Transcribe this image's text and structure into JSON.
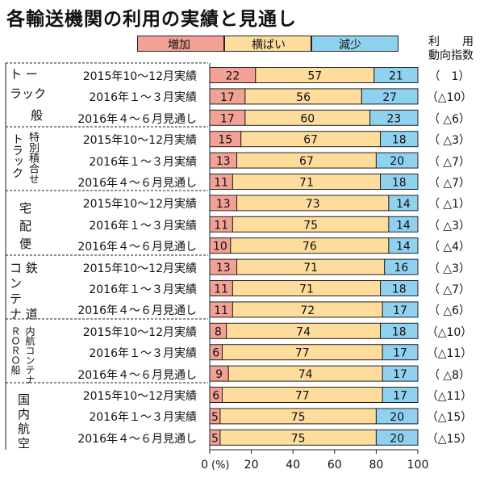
{
  "title": "各輸送機関の利用の実績と見通し",
  "legend": [
    {
      "label": "増加",
      "color": "#f4a195"
    },
    {
      "label": "横ばい",
      "color": "#fddc9c"
    },
    {
      "label": "減少",
      "color": "#8fd2f0"
    }
  ],
  "corner_label_1": "利　　用",
  "corner_label_2": "動向指数",
  "groups": [
    {
      "label_lines": [
        "ト ー",
        "ラック",
        "般"
      ],
      "rows": [
        0,
        1,
        2
      ]
    },
    {
      "label_lines": [
        "特別積合せ",
        "トラック"
      ],
      "rows": [
        3,
        4,
        5
      ]
    },
    {
      "label_lines": [
        "宅",
        "配",
        "便"
      ],
      "rows": [
        6,
        7,
        8
      ]
    },
    {
      "label_lines": [
        "コ 鉄",
        "ン",
        "テ",
        "ナ 道"
      ],
      "rows": [
        9,
        10,
        11
      ]
    },
    {
      "label_lines": [
        "ＲＯＲＯ船",
        "内航コンテナ"
      ],
      "rows": [
        12,
        13,
        14
      ]
    },
    {
      "label_lines": [
        "国",
        "内",
        "航",
        "空"
      ],
      "rows": [
        15,
        16,
        17
      ]
    }
  ],
  "chart_data": {
    "type": "bar",
    "orientation": "horizontal-stacked-100",
    "title": "各輸送機関の利用の実績と見通し",
    "xlabel": "(%)",
    "xlim": [
      0,
      100
    ],
    "x_ticks": [
      "0",
      "20",
      "40",
      "60",
      "80",
      "100"
    ],
    "x_unit_label": "(%)",
    "series_names": [
      "増加",
      "横ばい",
      "減少"
    ],
    "colors": [
      "#f4a195",
      "#fddc9c",
      "#8fd2f0"
    ],
    "rows": [
      {
        "label": "2015年10～12月実績",
        "values": [
          22,
          57,
          21
        ],
        "index": "（　1）"
      },
      {
        "label": "2016年１～３月実績",
        "values": [
          17,
          56,
          27
        ],
        "index": "（△10）"
      },
      {
        "label": "2016年４～６月見通し",
        "values": [
          17,
          60,
          23
        ],
        "index": "（ △6）"
      },
      {
        "label": "2015年10～12月実績",
        "values": [
          15,
          67,
          18
        ],
        "index": "（ △3）"
      },
      {
        "label": "2016年１～３月実績",
        "values": [
          13,
          67,
          20
        ],
        "index": "（ △7）"
      },
      {
        "label": "2016年４～６月見通し",
        "values": [
          11,
          71,
          18
        ],
        "index": "（ △7）"
      },
      {
        "label": "2015年10～12月実績",
        "values": [
          13,
          73,
          14
        ],
        "index": "（ △1）"
      },
      {
        "label": "2016年１～３月実績",
        "values": [
          11,
          75,
          14
        ],
        "index": "（ △3）"
      },
      {
        "label": "2016年４～６月見通し",
        "values": [
          10,
          76,
          14
        ],
        "index": "（ △4）"
      },
      {
        "label": "2015年10～12月実績",
        "values": [
          13,
          71,
          16
        ],
        "index": "（ △3）"
      },
      {
        "label": "2016年１～３月実績",
        "values": [
          11,
          71,
          18
        ],
        "index": "（ △7）"
      },
      {
        "label": "2016年４～６月見通し",
        "values": [
          11,
          72,
          17
        ],
        "index": "（ △6）"
      },
      {
        "label": "2015年10～12月実績",
        "values": [
          8,
          74,
          18
        ],
        "index": "（△10）"
      },
      {
        "label": "2016年１～３月実績",
        "values": [
          6,
          77,
          17
        ],
        "index": "（△11）"
      },
      {
        "label": "2016年４～６月見通し",
        "values": [
          9,
          74,
          17
        ],
        "index": "（ △8）"
      },
      {
        "label": "2015年10～12月実績",
        "values": [
          6,
          77,
          17
        ],
        "index": "（△11）"
      },
      {
        "label": "2016年１～３月実績",
        "values": [
          5,
          75,
          20
        ],
        "index": "（△15）"
      },
      {
        "label": "2016年４～６月見通し",
        "values": [
          5,
          75,
          20
        ],
        "index": "（△15）"
      }
    ]
  }
}
